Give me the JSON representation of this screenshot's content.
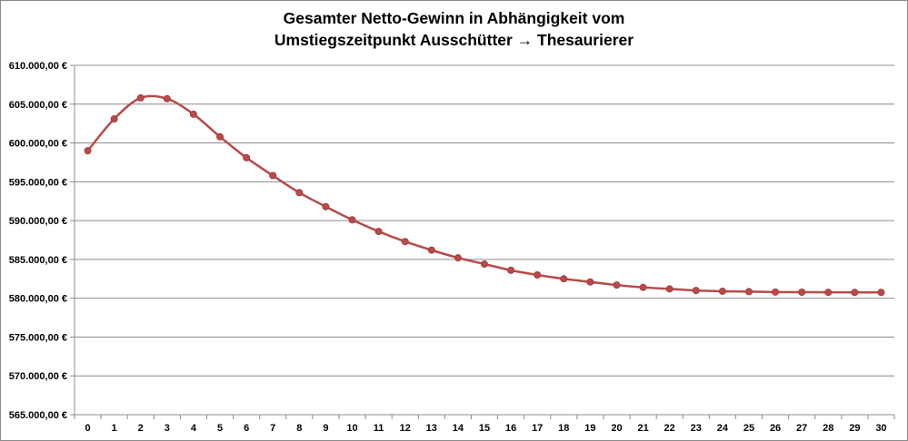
{
  "chart_data": {
    "type": "line",
    "title": "Gesamter Netto-Gewinn in Abhängigkeit vom",
    "subtitle": "Umstiegszeitpunkt Ausschütter → Thesaurierer",
    "xlabel": "",
    "ylabel": "",
    "ylim": [
      565000,
      610000
    ],
    "grid": true,
    "legend": "none",
    "color": "#b94a4a",
    "yticks": [
      "565.000,00 €",
      "570.000,00 €",
      "575.000,00 €",
      "580.000,00 €",
      "585.000,00 €",
      "590.000,00 €",
      "595.000,00 €",
      "600.000,00 €",
      "605.000,00 €",
      "610.000,00 €"
    ],
    "x": [
      "0",
      "1",
      "2",
      "3",
      "4",
      "5",
      "6",
      "7",
      "8",
      "9",
      "10",
      "11",
      "12",
      "13",
      "14",
      "15",
      "16",
      "17",
      "18",
      "19",
      "20",
      "21",
      "22",
      "23",
      "24",
      "25",
      "26",
      "27",
      "28",
      "29",
      "30"
    ],
    "series": [
      {
        "values": [
          599000,
          603100,
          605800,
          605700,
          603700,
          600800,
          598100,
          595800,
          593600,
          591800,
          590100,
          588600,
          587300,
          586200,
          585200,
          584400,
          583600,
          583000,
          582500,
          582100,
          581700,
          581400,
          581200,
          581000,
          580900,
          580850,
          580800,
          580780,
          580760,
          580750,
          580750
        ]
      }
    ]
  }
}
